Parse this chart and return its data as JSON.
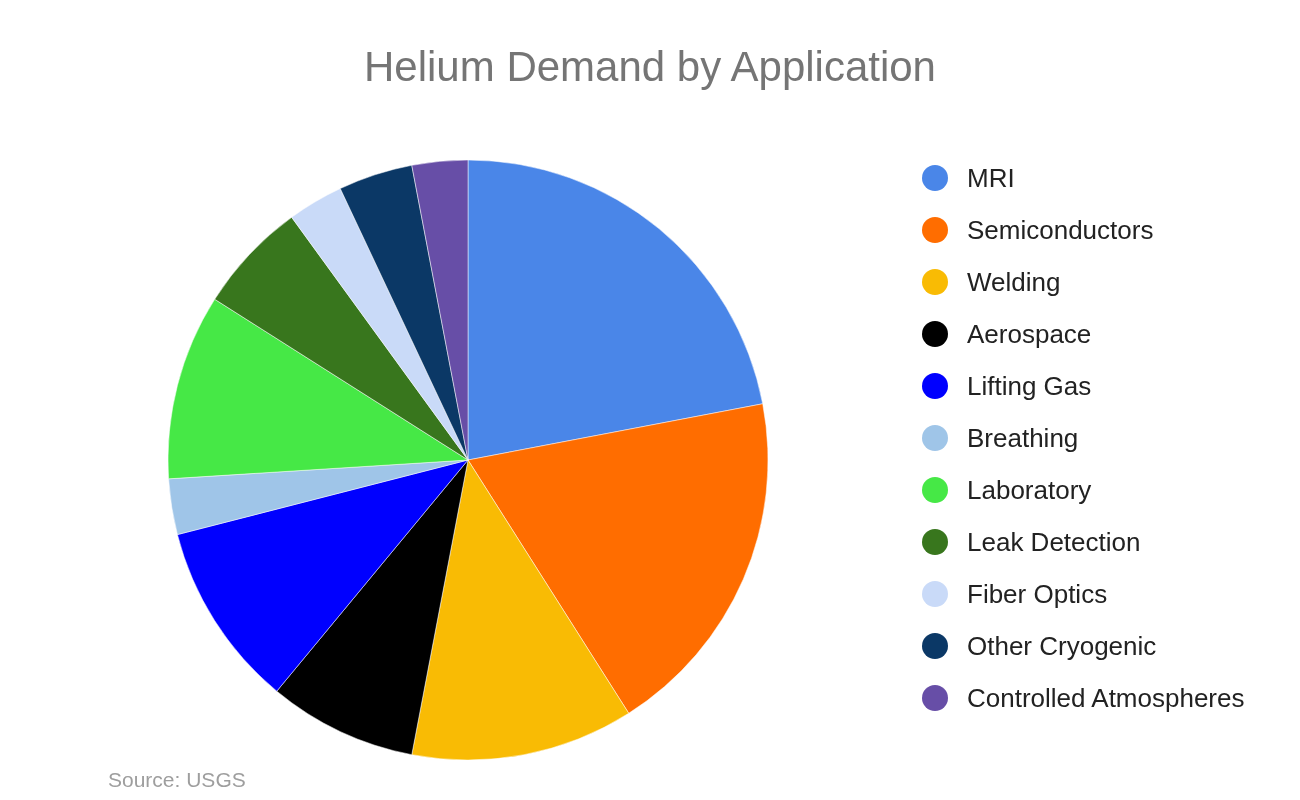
{
  "chart_data": {
    "type": "pie",
    "title": "Helium Demand by Application",
    "categories": [
      "MRI",
      "Semiconductors",
      "Welding",
      "Aerospace",
      "Lifting Gas",
      "Breathing",
      "Laboratory",
      "Leak Detection",
      "Fiber Optics",
      "Other Cryogenic",
      "Controlled Atmospheres"
    ],
    "values": [
      22,
      19,
      12,
      8,
      10,
      3,
      10,
      6,
      3,
      4,
      3
    ],
    "colors": [
      "#4a86e8",
      "#ff6d00",
      "#f9bb04",
      "#000000",
      "#0000ff",
      "#9fc5e8",
      "#46e846",
      "#38761d",
      "#c9daf8",
      "#0b3866",
      "#674ea7"
    ],
    "legend": "right",
    "annotations": [
      "Source: USGS"
    ]
  }
}
